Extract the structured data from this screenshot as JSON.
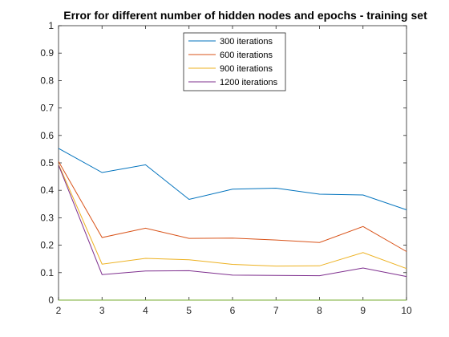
{
  "chart_data": {
    "type": "line",
    "title": "Error for different number of hidden nodes and epochs - training set",
    "xlabel": "",
    "ylabel": "",
    "x": [
      2,
      3,
      4,
      5,
      6,
      7,
      8,
      9,
      10
    ],
    "xlim": [
      2,
      10
    ],
    "ylim": [
      0,
      1
    ],
    "xticks": [
      "2",
      "3",
      "4",
      "5",
      "6",
      "7",
      "8",
      "9",
      "10"
    ],
    "yticks": [
      "0",
      "0.1",
      "0.2",
      "0.3",
      "0.4",
      "0.5",
      "0.6",
      "0.7",
      "0.8",
      "0.9",
      "1"
    ],
    "grid": false,
    "legend_position": "top-center",
    "series": [
      {
        "name": "300 iterations",
        "color": "#0072BD",
        "values": [
          0.553,
          0.465,
          0.493,
          0.367,
          0.404,
          0.408,
          0.386,
          0.383,
          0.329
        ]
      },
      {
        "name": "600 iterations",
        "color": "#D95319",
        "values": [
          0.505,
          0.228,
          0.262,
          0.225,
          0.226,
          0.219,
          0.21,
          0.268,
          0.177
        ]
      },
      {
        "name": "900 iterations",
        "color": "#EDB120",
        "values": [
          0.495,
          0.131,
          0.152,
          0.147,
          0.13,
          0.124,
          0.125,
          0.173,
          0.115
        ]
      },
      {
        "name": "1200 iterations",
        "color": "#7E2F8E",
        "values": [
          0.492,
          0.093,
          0.106,
          0.107,
          0.091,
          0.09,
          0.089,
          0.117,
          0.086
        ]
      }
    ],
    "baseline_color": "#77AC30"
  }
}
